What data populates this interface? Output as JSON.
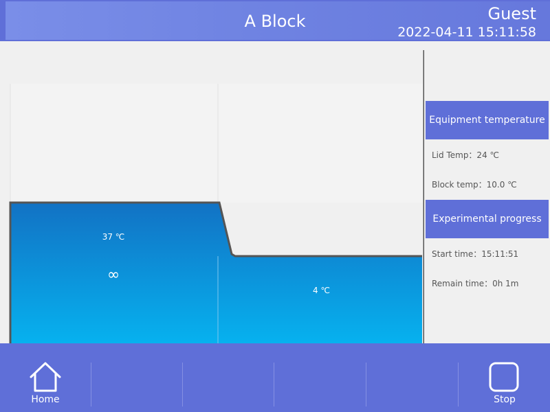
{
  "header": {
    "title": "A Block",
    "user": "Guest",
    "datetime": "2022-04-11 15:11:58"
  },
  "profile": {
    "steps": [
      {
        "temp": "37 ℃",
        "hold": "∞"
      },
      {
        "temp": "4 ℃"
      }
    ]
  },
  "sidebar": {
    "equipment_header": "Equipment temperature",
    "lid_temp": "Lid Temp：24 ℃",
    "block_temp": "Block temp：10.0 ℃",
    "progress_header": "Experimental progress",
    "start_time": "Start time：15:11:51",
    "remain_time": "Remain time：0h 1m"
  },
  "footer": {
    "home_label": "Home",
    "stop_label": "Stop"
  },
  "colors": {
    "header_bg": "#5f6fd8",
    "fill_top": "#1272c4",
    "fill_bottom": "#06b3f0",
    "outline": "#555555"
  },
  "icons": {
    "home": "home-icon",
    "stop": "stop-icon"
  }
}
